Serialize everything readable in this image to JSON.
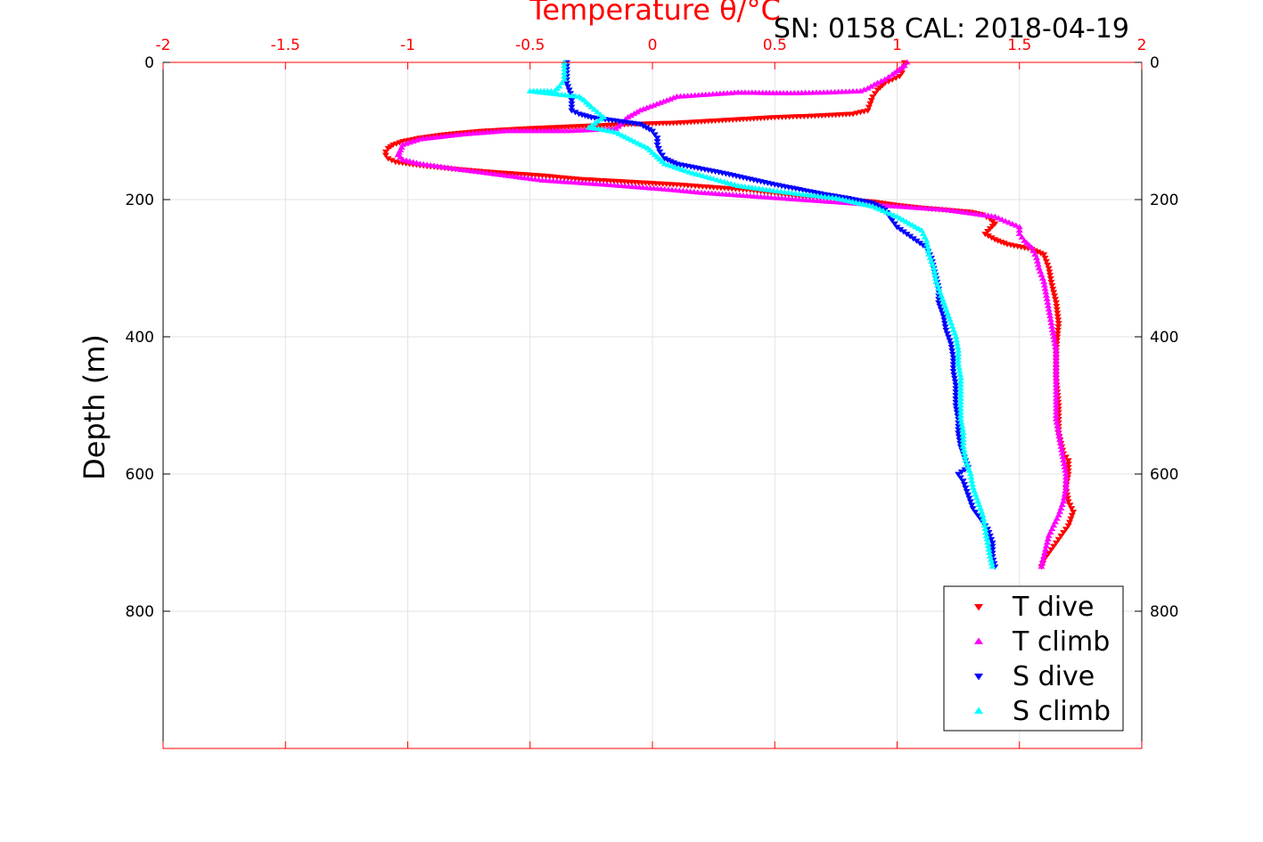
{
  "chart_data": {
    "type": "scatter",
    "title": "Temperature θ/°C",
    "subtitle": "SN: 0158  CAL: 2018-04-19",
    "xlabel": "Temperature θ/°C",
    "ylabel": "Depth (m)",
    "xlim": [
      -2,
      2
    ],
    "ylim": [
      0,
      1000
    ],
    "y_reversed": true,
    "x_axis_position": "top",
    "y_axes": "left-and-right",
    "grid": true,
    "x_ticks": [
      "-2",
      "-1.5",
      "-1",
      "-0.5",
      "0",
      "0.5",
      "1",
      "1.5",
      "2"
    ],
    "y_ticks": [
      "0",
      "200",
      "400",
      "600",
      "800"
    ],
    "y_tick_values": [
      0,
      200,
      400,
      600,
      800
    ],
    "x_tick_values": [
      -2,
      -1.5,
      -1,
      -0.5,
      0,
      0.5,
      1,
      1.5,
      2
    ],
    "legend_position": "bottom-right",
    "series": [
      {
        "name": "T dive",
        "color": "#ff0000",
        "marker": "triangle-down",
        "points": [
          [
            1.03,
            0
          ],
          [
            1.03,
            5
          ],
          [
            1.02,
            10
          ],
          [
            1.02,
            15
          ],
          [
            1.01,
            20
          ],
          [
            0.98,
            25
          ],
          [
            0.95,
            30
          ],
          [
            0.92,
            40
          ],
          [
            0.9,
            50
          ],
          [
            0.89,
            60
          ],
          [
            0.88,
            70
          ],
          [
            0.82,
            75
          ],
          [
            0.65,
            78
          ],
          [
            0.5,
            80
          ],
          [
            0.3,
            84
          ],
          [
            0.1,
            88
          ],
          [
            -0.1,
            90
          ],
          [
            -0.3,
            93
          ],
          [
            -0.5,
            96
          ],
          [
            -0.7,
            100
          ],
          [
            -0.85,
            105
          ],
          [
            -0.95,
            110
          ],
          [
            -1.02,
            115
          ],
          [
            -1.06,
            120
          ],
          [
            -1.08,
            125
          ],
          [
            -1.09,
            130
          ],
          [
            -1.09,
            135
          ],
          [
            -1.08,
            140
          ],
          [
            -1.05,
            145
          ],
          [
            -0.95,
            150
          ],
          [
            -0.82,
            155
          ],
          [
            -0.65,
            160
          ],
          [
            -0.45,
            165
          ],
          [
            -0.3,
            170
          ],
          [
            -0.1,
            174
          ],
          [
            0.1,
            178
          ],
          [
            0.25,
            182
          ],
          [
            0.4,
            186
          ],
          [
            0.5,
            190
          ],
          [
            0.6,
            195
          ],
          [
            0.7,
            198
          ],
          [
            0.8,
            200
          ],
          [
            0.9,
            203
          ],
          [
            1.0,
            208
          ],
          [
            1.1,
            212
          ],
          [
            1.2,
            215
          ],
          [
            1.3,
            218
          ],
          [
            1.35,
            222
          ],
          [
            1.38,
            228
          ],
          [
            1.4,
            235
          ],
          [
            1.38,
            242
          ],
          [
            1.36,
            250
          ],
          [
            1.4,
            258
          ],
          [
            1.45,
            265
          ],
          [
            1.55,
            272
          ],
          [
            1.6,
            280
          ],
          [
            1.62,
            300
          ],
          [
            1.63,
            320
          ],
          [
            1.65,
            350
          ],
          [
            1.66,
            380
          ],
          [
            1.65,
            420
          ],
          [
            1.65,
            460
          ],
          [
            1.66,
            500
          ],
          [
            1.66,
            540
          ],
          [
            1.68,
            570
          ],
          [
            1.7,
            580
          ],
          [
            1.7,
            600
          ],
          [
            1.69,
            620
          ],
          [
            1.7,
            640
          ],
          [
            1.72,
            655
          ],
          [
            1.71,
            665
          ],
          [
            1.7,
            675
          ],
          [
            1.68,
            685
          ],
          [
            1.66,
            695
          ],
          [
            1.64,
            705
          ],
          [
            1.62,
            715
          ],
          [
            1.6,
            725
          ],
          [
            1.59,
            735
          ]
        ]
      },
      {
        "name": "T climb",
        "color": "#ff00ff",
        "marker": "triangle-up",
        "points": [
          [
            1.59,
            735
          ],
          [
            1.6,
            720
          ],
          [
            1.61,
            705
          ],
          [
            1.62,
            690
          ],
          [
            1.64,
            675
          ],
          [
            1.66,
            660
          ],
          [
            1.68,
            640
          ],
          [
            1.69,
            620
          ],
          [
            1.69,
            600
          ],
          [
            1.68,
            580
          ],
          [
            1.67,
            560
          ],
          [
            1.66,
            540
          ],
          [
            1.65,
            520
          ],
          [
            1.65,
            500
          ],
          [
            1.65,
            480
          ],
          [
            1.65,
            460
          ],
          [
            1.65,
            440
          ],
          [
            1.65,
            420
          ],
          [
            1.64,
            400
          ],
          [
            1.63,
            380
          ],
          [
            1.62,
            360
          ],
          [
            1.61,
            340
          ],
          [
            1.6,
            320
          ],
          [
            1.58,
            300
          ],
          [
            1.57,
            285
          ],
          [
            1.55,
            270
          ],
          [
            1.52,
            260
          ],
          [
            1.5,
            250
          ],
          [
            1.5,
            240
          ],
          [
            1.4,
            225
          ],
          [
            1.2,
            215
          ],
          [
            1.0,
            210
          ],
          [
            0.8,
            205
          ],
          [
            0.6,
            200
          ],
          [
            0.4,
            195
          ],
          [
            0.2,
            190
          ],
          [
            0.05,
            185
          ],
          [
            -0.2,
            178
          ],
          [
            -0.45,
            172
          ],
          [
            -0.6,
            165
          ],
          [
            -0.75,
            158
          ],
          [
            -0.85,
            153
          ],
          [
            -0.95,
            148
          ],
          [
            -1.02,
            142
          ],
          [
            -1.04,
            135
          ],
          [
            -1.03,
            128
          ],
          [
            -1.02,
            120
          ],
          [
            -0.95,
            112
          ],
          [
            -0.78,
            105
          ],
          [
            -0.6,
            100
          ],
          [
            -0.45,
            100
          ],
          [
            -0.35,
            100
          ],
          [
            -0.15,
            97
          ],
          [
            -0.1,
            80
          ],
          [
            -0.05,
            70
          ],
          [
            0.1,
            50
          ],
          [
            0.35,
            44
          ],
          [
            0.55,
            45
          ],
          [
            0.7,
            44
          ],
          [
            0.85,
            42
          ],
          [
            0.88,
            38
          ],
          [
            0.92,
            30
          ],
          [
            0.95,
            25
          ],
          [
            0.98,
            18
          ],
          [
            1.01,
            10
          ],
          [
            1.03,
            5
          ],
          [
            1.04,
            0
          ]
        ]
      },
      {
        "name": "S dive",
        "color": "#0000ff",
        "marker": "triangle-down",
        "points": [
          [
            -0.35,
            0
          ],
          [
            -0.35,
            10
          ],
          [
            -0.35,
            20
          ],
          [
            -0.35,
            30
          ],
          [
            -0.34,
            40
          ],
          [
            -0.33,
            50
          ],
          [
            -0.33,
            60
          ],
          [
            -0.33,
            70
          ],
          [
            -0.3,
            75
          ],
          [
            -0.25,
            80
          ],
          [
            -0.15,
            85
          ],
          [
            -0.05,
            90
          ],
          [
            0.0,
            100
          ],
          [
            0.02,
            110
          ],
          [
            0.02,
            120
          ],
          [
            0.03,
            130
          ],
          [
            0.05,
            140
          ],
          [
            0.1,
            148
          ],
          [
            0.2,
            155
          ],
          [
            0.3,
            162
          ],
          [
            0.4,
            170
          ],
          [
            0.5,
            178
          ],
          [
            0.6,
            185
          ],
          [
            0.7,
            192
          ],
          [
            0.8,
            198
          ],
          [
            0.9,
            205
          ],
          [
            0.95,
            215
          ],
          [
            0.98,
            230
          ],
          [
            1.0,
            240
          ],
          [
            1.04,
            250
          ],
          [
            1.08,
            260
          ],
          [
            1.12,
            270
          ],
          [
            1.14,
            285
          ],
          [
            1.15,
            300
          ],
          [
            1.17,
            330
          ],
          [
            1.17,
            350
          ],
          [
            1.19,
            370
          ],
          [
            1.2,
            390
          ],
          [
            1.22,
            410
          ],
          [
            1.23,
            430
          ],
          [
            1.23,
            450
          ],
          [
            1.24,
            470
          ],
          [
            1.24,
            500
          ],
          [
            1.25,
            520
          ],
          [
            1.25,
            540
          ],
          [
            1.26,
            560
          ],
          [
            1.28,
            580
          ],
          [
            1.29,
            590
          ],
          [
            1.25,
            600
          ],
          [
            1.27,
            610
          ],
          [
            1.28,
            620
          ],
          [
            1.29,
            630
          ],
          [
            1.3,
            640
          ],
          [
            1.31,
            650
          ],
          [
            1.33,
            660
          ],
          [
            1.35,
            670
          ],
          [
            1.37,
            680
          ],
          [
            1.38,
            690
          ],
          [
            1.39,
            700
          ],
          [
            1.39,
            710
          ],
          [
            1.39,
            720
          ],
          [
            1.4,
            735
          ]
        ]
      },
      {
        "name": "S climb",
        "color": "#00ffff",
        "marker": "triangle-up",
        "points": [
          [
            1.39,
            735
          ],
          [
            1.38,
            720
          ],
          [
            1.37,
            700
          ],
          [
            1.36,
            680
          ],
          [
            1.35,
            660
          ],
          [
            1.33,
            640
          ],
          [
            1.31,
            620
          ],
          [
            1.3,
            600
          ],
          [
            1.28,
            580
          ],
          [
            1.27,
            560
          ],
          [
            1.27,
            540
          ],
          [
            1.26,
            520
          ],
          [
            1.26,
            500
          ],
          [
            1.26,
            480
          ],
          [
            1.26,
            460
          ],
          [
            1.25,
            440
          ],
          [
            1.25,
            420
          ],
          [
            1.24,
            400
          ],
          [
            1.22,
            380
          ],
          [
            1.2,
            360
          ],
          [
            1.18,
            340
          ],
          [
            1.16,
            320
          ],
          [
            1.15,
            300
          ],
          [
            1.13,
            280
          ],
          [
            1.12,
            260
          ],
          [
            1.1,
            245
          ],
          [
            1.05,
            235
          ],
          [
            1.0,
            225
          ],
          [
            0.9,
            210
          ],
          [
            0.75,
            198
          ],
          [
            0.6,
            192
          ],
          [
            0.45,
            185
          ],
          [
            0.35,
            180
          ],
          [
            0.25,
            170
          ],
          [
            0.15,
            160
          ],
          [
            0.05,
            148
          ],
          [
            -0.02,
            125
          ],
          [
            -0.15,
            102
          ],
          [
            -0.22,
            97
          ],
          [
            -0.26,
            95
          ],
          [
            -0.2,
            80
          ],
          [
            -0.25,
            65
          ],
          [
            -0.28,
            55
          ],
          [
            -0.3,
            50
          ],
          [
            -0.5,
            42
          ],
          [
            -0.4,
            42
          ],
          [
            -0.38,
            35
          ],
          [
            -0.36,
            25
          ],
          [
            -0.36,
            15
          ],
          [
            -0.36,
            5
          ],
          [
            -0.36,
            0
          ]
        ]
      }
    ]
  }
}
